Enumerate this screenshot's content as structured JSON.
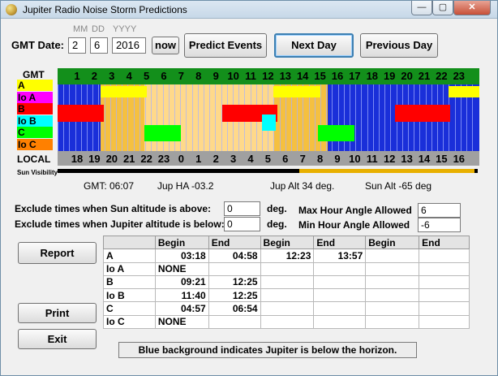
{
  "window": {
    "title": "Jupiter Radio Noise Storm Predictions",
    "min": "—",
    "max": "▢",
    "close": "✕"
  },
  "date": {
    "label": "GMT Date:",
    "format_mm": "MM",
    "format_dd": "DD",
    "format_yyyy": "YYYY",
    "month": "2",
    "day": "6",
    "year": "2016"
  },
  "buttons": {
    "now": "now",
    "predict": "Predict Events",
    "next": "Next Day",
    "previous": "Previous Day",
    "report": "Report",
    "print": "Print",
    "exit": "Exit"
  },
  "chart": {
    "gmt_label": "GMT",
    "local_label": "LOCAL",
    "sun_label": "Sun Visibility",
    "lanes": [
      {
        "name": "A",
        "color": "#ffff00"
      },
      {
        "name": "Io A",
        "color": "#ff00ff"
      },
      {
        "name": "B",
        "color": "#ff0000"
      },
      {
        "name": "Io B",
        "color": "#00ffff"
      },
      {
        "name": "C",
        "color": "#00ff00"
      },
      {
        "name": "Io C",
        "color": "#ff8000"
      }
    ],
    "gmt_hours": [
      "1",
      "2",
      "3",
      "4",
      "5",
      "6",
      "7",
      "8",
      "9",
      "10",
      "11",
      "12",
      "13",
      "14",
      "15",
      "16",
      "17",
      "18",
      "19",
      "20",
      "21",
      "22",
      "23"
    ],
    "local_hours": [
      "18",
      "19",
      "20",
      "21",
      "22",
      "23",
      "0",
      "1",
      "2",
      "3",
      "4",
      "5",
      "6",
      "7",
      "8",
      "9",
      "10",
      "11",
      "12",
      "13",
      "14",
      "15",
      "16"
    ]
  },
  "readout": {
    "gmt": "GMT: 06:07",
    "ha": "Jup HA -03.2",
    "jalt": "Jup Alt 34 deg.",
    "salt": "Sun Alt -65 deg"
  },
  "filters": {
    "sun_label": "Exclude times when Sun altitude is above:",
    "sun_value": "0",
    "jup_label": "Exclude times when Jupiter altitude is below:",
    "jup_value": "0",
    "deg": "deg.",
    "max_ha_label": "Max Hour Angle Allowed",
    "max_ha_value": "6",
    "min_ha_label": "Min Hour Angle Allowed",
    "min_ha_value": "-6"
  },
  "table": {
    "headers": [
      "",
      "Begin",
      "End",
      "Begin",
      "End",
      "Begin",
      "End"
    ],
    "rows": [
      [
        "A",
        "03:18",
        "04:58",
        "12:23",
        "13:57",
        "",
        ""
      ],
      [
        "Io A",
        "NONE",
        "",
        "",
        "",
        "",
        ""
      ],
      [
        "B",
        "09:21",
        "12:25",
        "",
        "",
        "",
        ""
      ],
      [
        "Io B",
        "11:40",
        "12:25",
        "",
        "",
        "",
        ""
      ],
      [
        "C",
        "04:57",
        "06:54",
        "",
        "",
        "",
        ""
      ],
      [
        "Io C",
        "NONE",
        "",
        "",
        "",
        "",
        ""
      ]
    ]
  },
  "status": "Blue background indicates Jupiter is below the horizon."
}
